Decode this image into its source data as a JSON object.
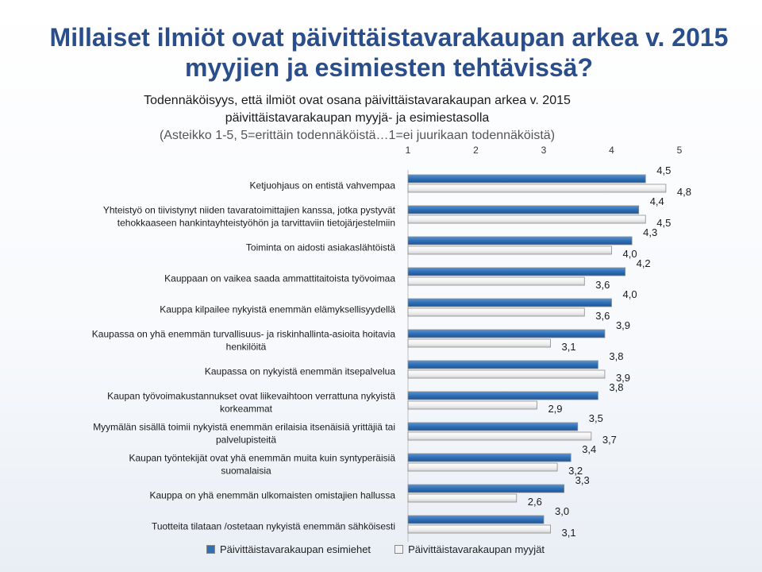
{
  "page": {
    "title_line1": "Millaiset ilmiöt ovat päivittäistavarakaupan arkea v. 2015",
    "title_line2": "myyjien ja esimiesten tehtävissä?",
    "subtitle_line1": "Todennäköisyys, että ilmiöt ovat osana päivittäistavarakaupan arkea v. 2015",
    "subtitle_line2": "päivittäistavarakaupan myyjä- ja esimiestasolla",
    "subtitle_line3": "(Asteikko 1-5, 5=erittäin todennäköistä…1=ei juurikaan todennäköistä)"
  },
  "colors": {
    "title": "#2a4e8c",
    "series_esimiehet": "#2e6fb5",
    "series_myyjat": "#f2f2f2",
    "bar_border": "#7f7f7f"
  },
  "chart_data": {
    "type": "bar",
    "orientation": "horizontal",
    "categories": [
      "Ketjuohjaus on entistä vahvempaa",
      "Yhteistyö on tiivistynyt niiden tavaratoimittajien kanssa, jotka pystyvät tehokkaaseen hankintayhteistyöhön ja tarvittaviin tietojärjestelmiin",
      "Toiminta on aidosti asiakaslähtöistä",
      "Kauppaan on vaikea saada ammattitaitoista työvoimaa",
      "Kauppa kilpailee nykyistä enemmän elämyksellisyydellä",
      "Kaupassa on yhä enemmän turvallisuus- ja riskinhallinta-asioita hoitavia henkilöitä",
      "Kaupassa on nykyistä enemmän itsepalvelua",
      "Kaupan työvoimakustannukset ovat liikevaihtoon verrattuna nykyistä korkeammat",
      "Myymälän sisällä toimii nykyistä enemmän erilaisia itsenäisiä yrittäjiä tai palvelupisteitä",
      "Kaupan työntekijät ovat yhä enemmän muita kuin syntyperäisiä suomalaisia",
      "Kauppa on yhä enemmän ulkomaisten omistajien hallussa",
      "Tuotteita tilataan /ostetaan nykyistä enemmän sähköisesti"
    ],
    "category_lines": [
      [
        "Ketjuohjaus on entistä vahvempaa"
      ],
      [
        "Yhteistyö on tiivistynyt niiden tavaratoimittajien kanssa, jotka pystyvät",
        "tehokkaaseen hankintayhteistyöhön ja tarvittaviin tietojärjestelmiin"
      ],
      [
        "Toiminta on aidosti asiakaslähtöistä"
      ],
      [
        "Kauppaan on vaikea saada ammattitaitoista työvoimaa"
      ],
      [
        "Kauppa kilpailee nykyistä enemmän elämyksellisyydellä"
      ],
      [
        "Kaupassa on yhä enemmän turvallisuus- ja riskinhallinta-asioita hoitavia",
        "henkilöitä"
      ],
      [
        "Kaupassa on nykyistä enemmän itsepalvelua"
      ],
      [
        "Kaupan työvoimakustannukset ovat liikevaihtoon verrattuna nykyistä",
        "korkeammat"
      ],
      [
        "Myymälän sisällä toimii nykyistä enemmän erilaisia itsenäisiä yrittäjiä tai",
        "palvelupisteitä"
      ],
      [
        "Kaupan työntekijät ovat yhä enemmän muita kuin syntyperäisiä",
        "suomalaisia"
      ],
      [
        "Kauppa on yhä enemmän ulkomaisten omistajien hallussa"
      ],
      [
        "Tuotteita tilataan /ostetaan nykyistä enemmän sähköisesti"
      ]
    ],
    "series": [
      {
        "name": "Päivittäistavarakaupan esimiehet",
        "values": [
          4.5,
          4.4,
          4.3,
          4.2,
          4.0,
          3.9,
          3.8,
          3.8,
          3.5,
          3.4,
          3.3,
          3.0
        ],
        "labels": [
          "4,5",
          "4,4",
          "4,3",
          "4,2",
          "4,0",
          "3,9",
          "3,8",
          "3,8",
          "3,5",
          "3,4",
          "3,3",
          "3,0"
        ]
      },
      {
        "name": "Päivittäistavarakaupan myyjät",
        "values": [
          4.8,
          4.5,
          4.0,
          3.6,
          3.6,
          3.1,
          3.9,
          2.9,
          3.7,
          3.2,
          2.6,
          3.1
        ],
        "labels": [
          "4,8",
          "4,5",
          "4,0",
          "3,6",
          "3,6",
          "3,1",
          "3,9",
          "2,9",
          "3,7",
          "3,2",
          "2,6",
          "3,1"
        ]
      }
    ],
    "xlim": [
      1,
      5
    ],
    "ticks": [
      1,
      2,
      3,
      4,
      5
    ],
    "tick_labels": [
      "1",
      "2",
      "3",
      "4",
      "5"
    ],
    "legend_position": "bottom",
    "grid": false
  }
}
